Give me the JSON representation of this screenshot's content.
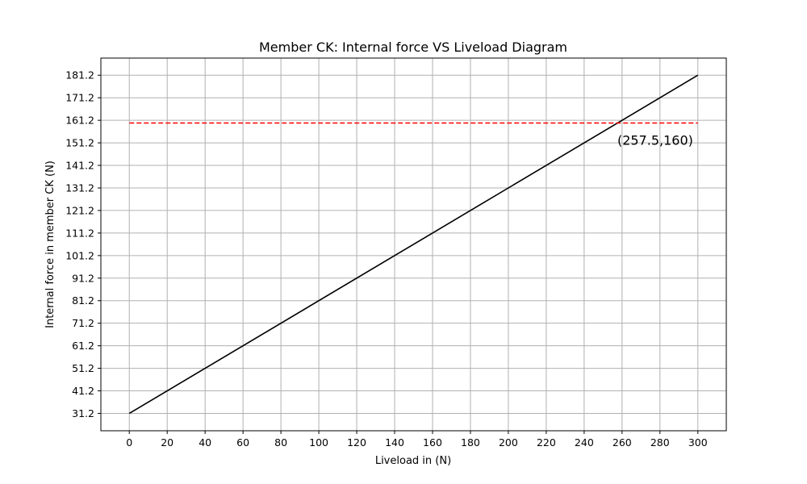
{
  "chart_data": {
    "type": "line",
    "title": "Member CK: Internal force VS Liveload Diagram",
    "xlabel": "Liveload in (N)",
    "ylabel": "Internal force in member CK (N)",
    "xlim": [
      -15,
      315
    ],
    "ylim": [
      23.5,
      188.8
    ],
    "grid": true,
    "x_ticks": [
      0,
      20,
      40,
      60,
      80,
      100,
      120,
      140,
      160,
      180,
      200,
      220,
      240,
      260,
      280,
      300
    ],
    "y_ticks": [
      31.2,
      41.2,
      51.2,
      61.2,
      71.2,
      81.2,
      91.2,
      101.2,
      111.2,
      121.2,
      131.2,
      141.2,
      151.2,
      161.2,
      171.2,
      181.2
    ],
    "series": [
      {
        "name": "internal-force",
        "style": "solid",
        "color": "#000000",
        "x": [
          0,
          300
        ],
        "y": [
          31.2,
          181.2
        ]
      },
      {
        "name": "limit",
        "style": "dashed",
        "color": "#ff0000",
        "x": [
          0,
          300
        ],
        "y": [
          160,
          160
        ]
      }
    ],
    "annotations": [
      {
        "text": "(257.5,160)",
        "x": 257.5,
        "y": 160
      }
    ]
  }
}
